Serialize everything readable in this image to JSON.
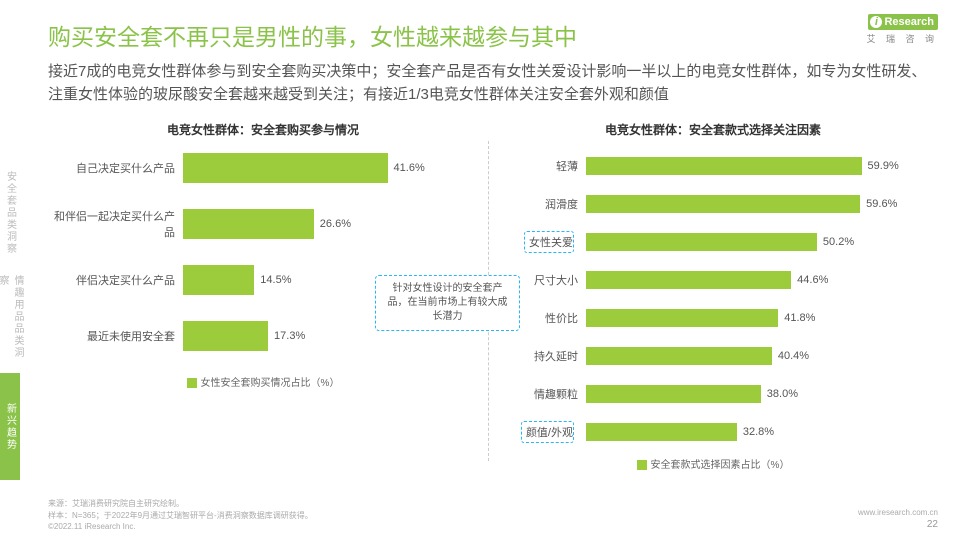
{
  "logo": {
    "brand": "Research",
    "sub": "艾 瑞 咨 询"
  },
  "sidebar": {
    "items": [
      {
        "label": "安全套品类洞察",
        "active": false
      },
      {
        "label": "情趣用品品类洞察",
        "active": false
      },
      {
        "label": "新兴趋势",
        "active": true
      }
    ]
  },
  "title": "购买安全套不再只是男性的事，女性越来越参与其中",
  "subtitle": "接近7成的电竞女性群体参与到安全套购买决策中；安全套产品是否有女性关爱设计影响一半以上的电竞女性群体，如专为女性研发、注重女性体验的玻尿酸安全套越来越受到关注；有接近1/3电竞女性群体关注安全套外观和颜值",
  "chart_left": {
    "title": "电竞女性群体：安全套购买参与情况",
    "type": "bar-horizontal",
    "bar_color": "#9ccc3c",
    "max": 60,
    "items": [
      {
        "label": "自己决定买什么产品",
        "value": 41.6
      },
      {
        "label": "和伴侣一起决定买什么产品",
        "value": 26.6
      },
      {
        "label": "伴侣决定买什么产品",
        "value": 14.5
      },
      {
        "label": "最近未使用安全套",
        "value": 17.3
      }
    ],
    "legend": "女性安全套购买情况占比（%）"
  },
  "chart_right": {
    "title": "电竞女性群体：安全套款式选择关注因素",
    "type": "bar-horizontal",
    "bar_color": "#9ccc3c",
    "max": 70,
    "items": [
      {
        "label": "轻薄",
        "value": 59.9,
        "highlight": false
      },
      {
        "label": "润滑度",
        "value": 59.6,
        "highlight": false
      },
      {
        "label": "女性关爱",
        "value": 50.2,
        "highlight": true
      },
      {
        "label": "尺寸大小",
        "value": 44.6,
        "highlight": false
      },
      {
        "label": "性价比",
        "value": 41.8,
        "highlight": false
      },
      {
        "label": "持久延时",
        "value": 40.4,
        "highlight": false
      },
      {
        "label": "情趣颗粒",
        "value": 38.0,
        "highlight": false
      },
      {
        "label": "颜值/外观",
        "value": 32.8,
        "highlight": true
      }
    ],
    "legend": "安全套款式选择因素占比（%）"
  },
  "callout": "针对女性设计的安全套产品，在当前市场上有较大成长潜力",
  "footer": {
    "source": "来源：艾瑞消费研究院自主研究绘制。",
    "sample": "样本：N=365；于2022年9月通过艾瑞智研平台-消费洞察数据库调研获得。",
    "copyright": "©2022.11 iResearch Inc.",
    "site": "www.iresearch.com.cn",
    "page": "22"
  }
}
